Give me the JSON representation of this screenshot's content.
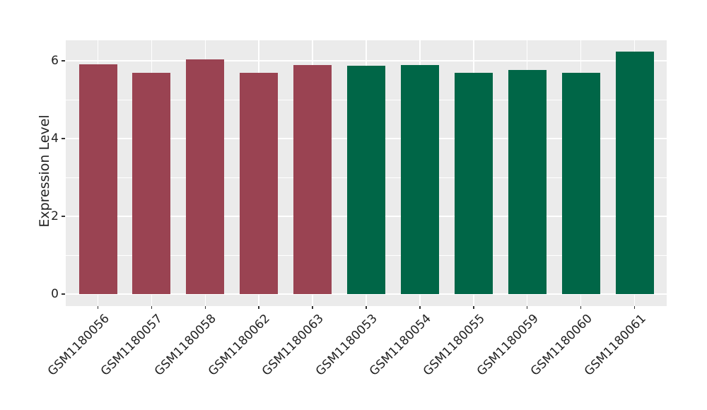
{
  "chart_data": {
    "type": "bar",
    "title": "",
    "xlabel": "",
    "ylabel": "Expression Level",
    "categories": [
      "GSM1180056",
      "GSM1180057",
      "GSM1180058",
      "GSM1180062",
      "GSM1180063",
      "GSM1180053",
      "GSM1180054",
      "GSM1180055",
      "GSM1180059",
      "GSM1180060",
      "GSM1180061"
    ],
    "values": [
      5.91,
      5.7,
      6.03,
      5.7,
      5.89,
      5.88,
      5.9,
      5.7,
      5.76,
      5.7,
      6.24
    ],
    "bar_colors": [
      "#9a4352",
      "#9a4352",
      "#9a4352",
      "#9a4352",
      "#9a4352",
      "#006647",
      "#006647",
      "#006647",
      "#006647",
      "#006647",
      "#006647"
    ],
    "group_colors": {
      "maroon": "#9a4352",
      "green": "#006647"
    },
    "yticks": [
      0,
      2,
      4,
      6
    ],
    "yticks_minor": [
      1,
      3,
      5
    ],
    "ylim": [
      -0.31,
      6.55
    ],
    "grid": true,
    "legend": false,
    "panel_background": "#ebebeb",
    "grid_color": "#ffffff",
    "tick_color": "#333333",
    "text_color": "#222222"
  }
}
